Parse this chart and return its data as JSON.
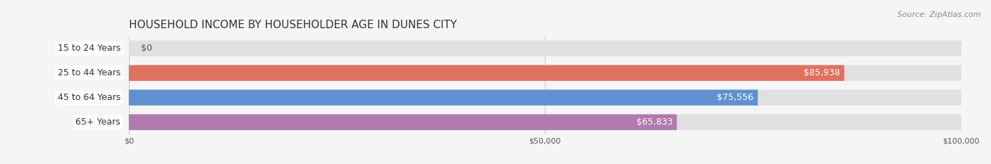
{
  "title": "HOUSEHOLD INCOME BY HOUSEHOLDER AGE IN DUNES CITY",
  "source": "Source: ZipAtlas.com",
  "categories": [
    "15 to 24 Years",
    "25 to 44 Years",
    "45 to 64 Years",
    "65+ Years"
  ],
  "values": [
    0,
    85938,
    75556,
    65833
  ],
  "labels": [
    "$0",
    "$85,938",
    "$75,556",
    "$65,833"
  ],
  "bar_colors": [
    "#f0c080",
    "#e07060",
    "#6090d0",
    "#b07ab0"
  ],
  "bar_bg_color": "#e8e8e8",
  "xlim": [
    0,
    100000
  ],
  "xticks": [
    0,
    50000,
    100000
  ],
  "xtick_labels": [
    "$0",
    "$50,000",
    "$100,000"
  ],
  "title_fontsize": 11,
  "source_fontsize": 8,
  "label_fontsize": 9,
  "category_fontsize": 9,
  "background_color": "#f5f5f5",
  "bar_bg_alpha": 0.5
}
